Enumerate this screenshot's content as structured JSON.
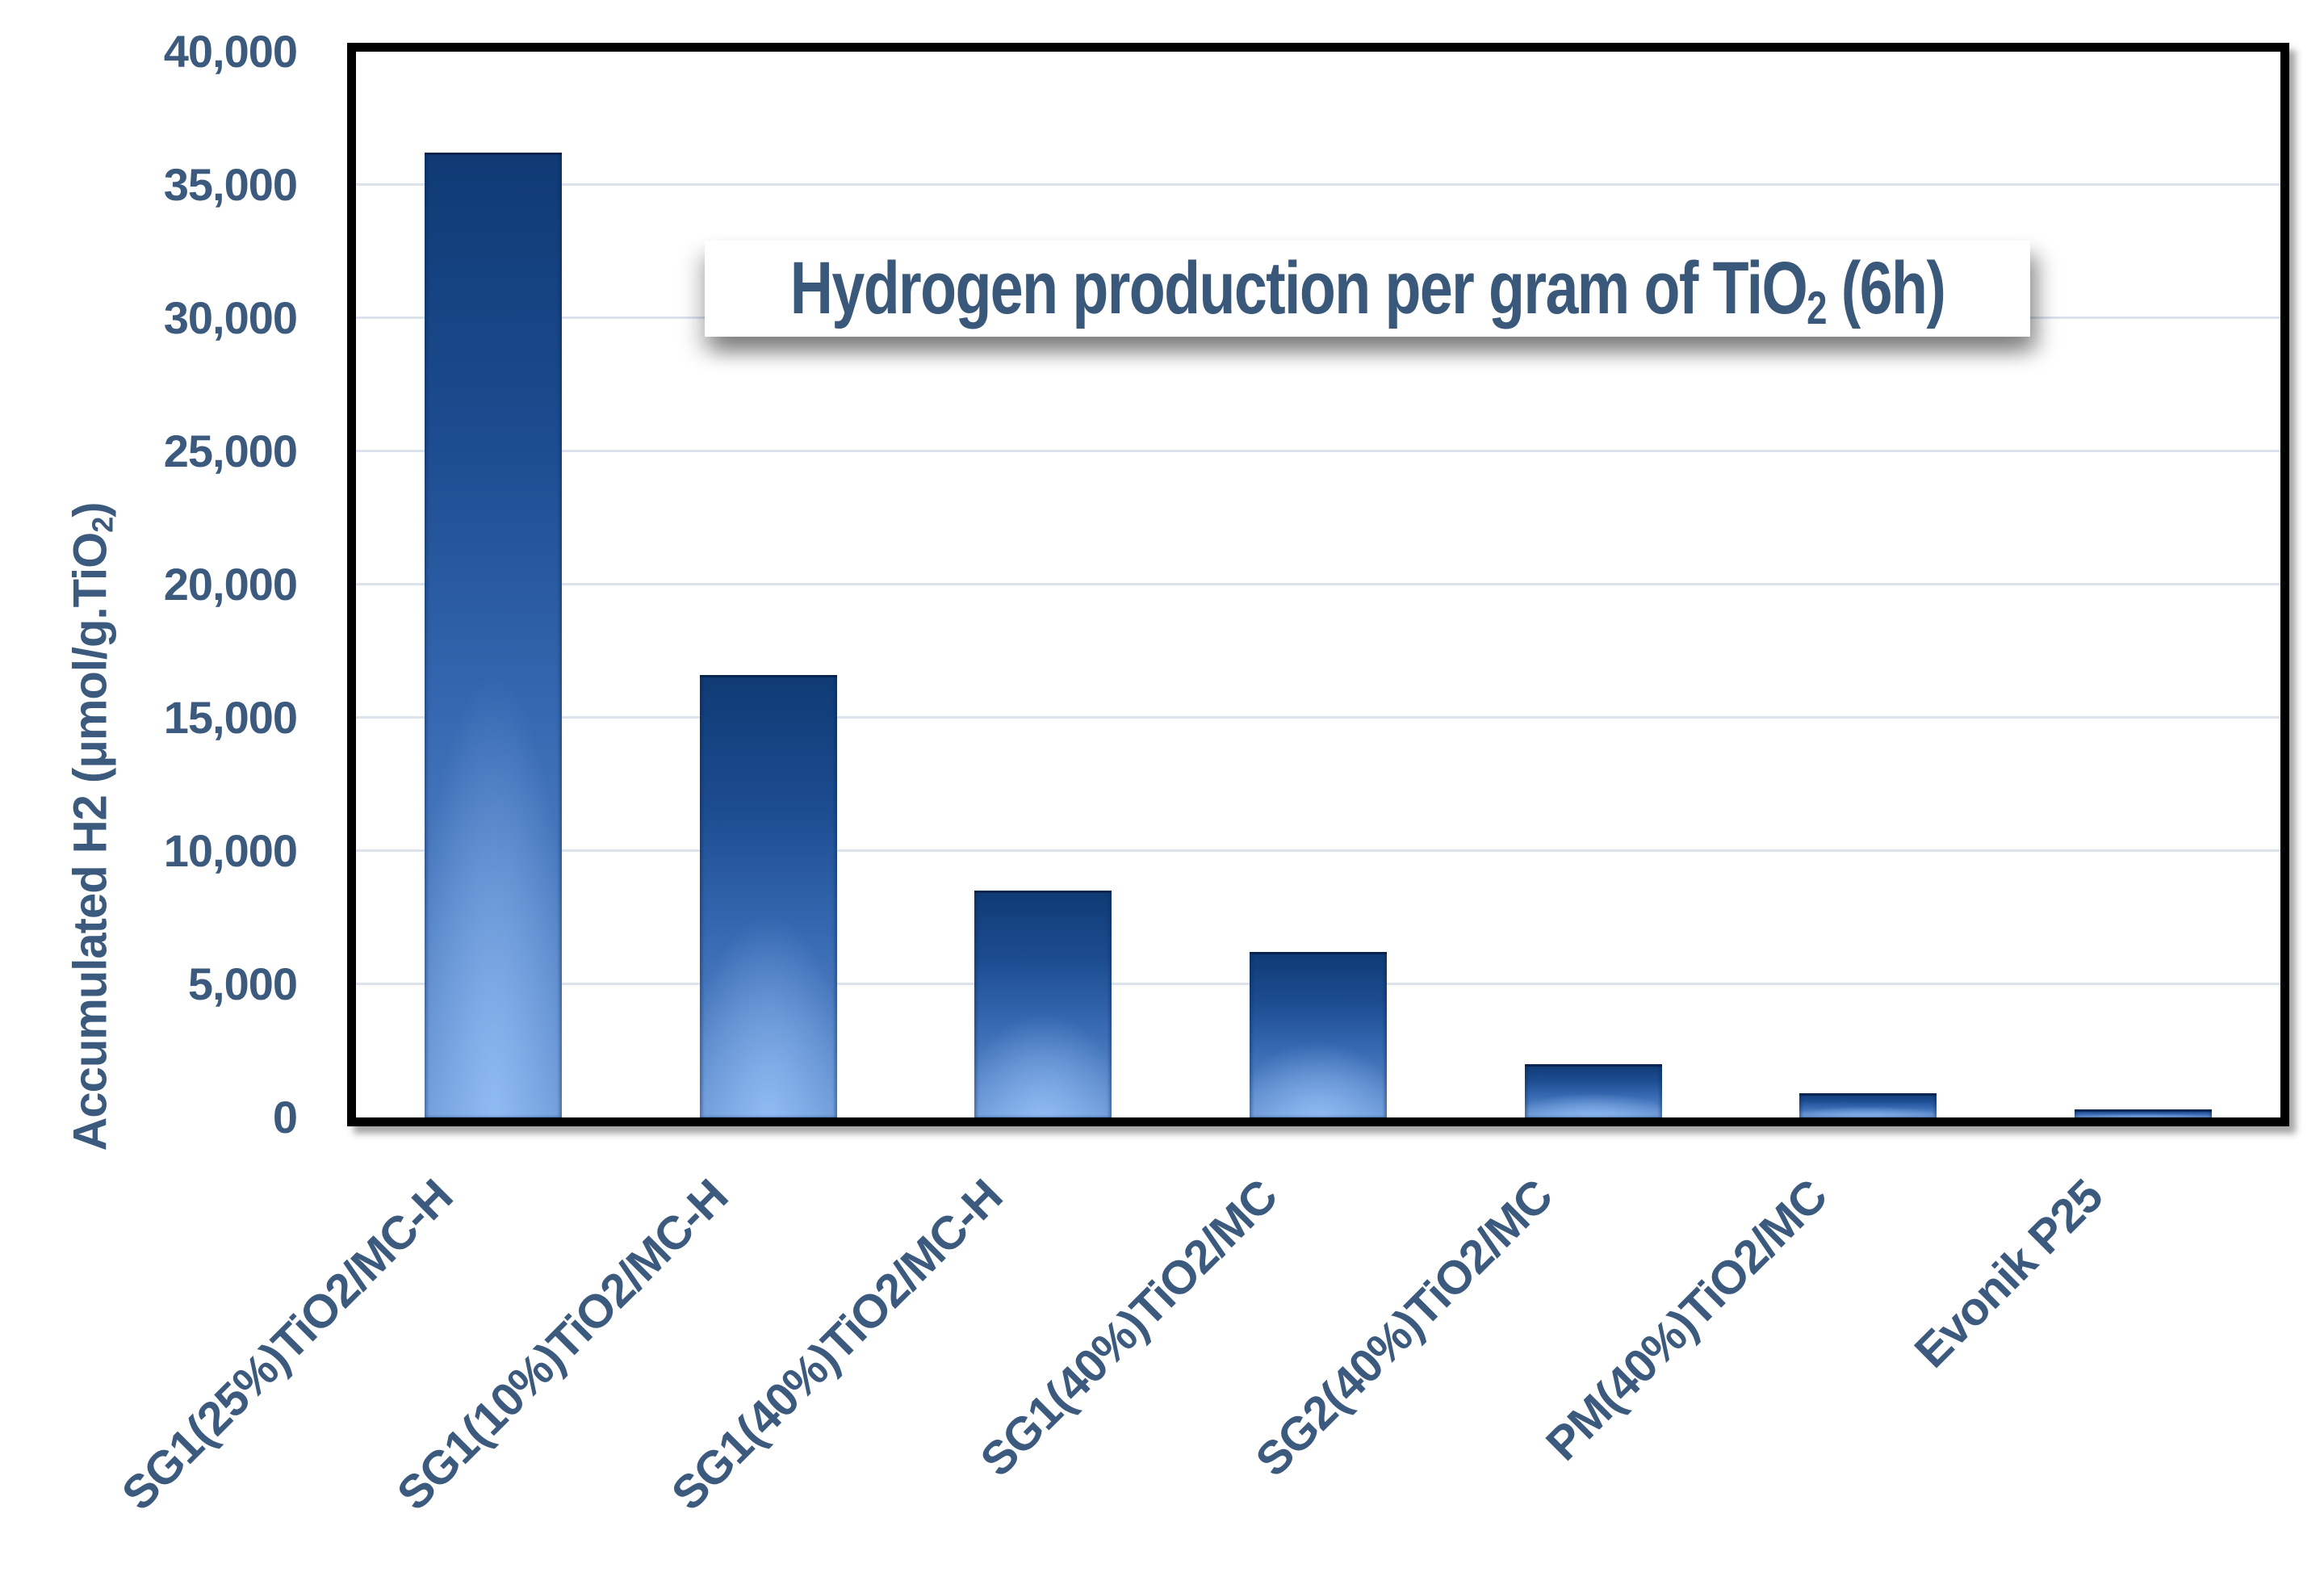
{
  "chart_data": {
    "type": "bar",
    "title": {
      "pre": "Hydrogen production per gram of TiO",
      "sub": "2",
      "post": " (6h)"
    },
    "y_axis_label": {
      "pre": "Accumulated H2 (μmol/g.TiO",
      "sub": "2",
      "post": ")"
    },
    "categories": [
      "SG1(25%)TiO2/MC-H",
      "SG1(10%)TiO2/MC-H",
      "SG1(40%)TiO2/MC-H",
      "SG1(40%)TiO2/MC",
      "SG2(40%)TiO2/MC",
      "PM(40%)TiO2/MC",
      "Evonik P25"
    ],
    "values": [
      36200,
      16600,
      8500,
      6200,
      2000,
      900,
      300
    ],
    "xlabel": "",
    "ylabel": "Accumulated H2 (μmol/g.TiO2)",
    "ylim": [
      0,
      40000
    ],
    "y_tick_step": 5000,
    "y_tick_labels": [
      "0",
      "5,000",
      "10,000",
      "15,000",
      "20,000",
      "25,000",
      "30,000",
      "35,000",
      "40,000"
    ],
    "grid": true,
    "legend": false,
    "colors": {
      "bar_gradient_top": "#0f3a74",
      "bar_gradient_bottom": "#6c98d6",
      "text": "#3b5a7d",
      "gridline": "#dce3ed",
      "plot_border": "#000000",
      "background": "#ffffff"
    }
  }
}
